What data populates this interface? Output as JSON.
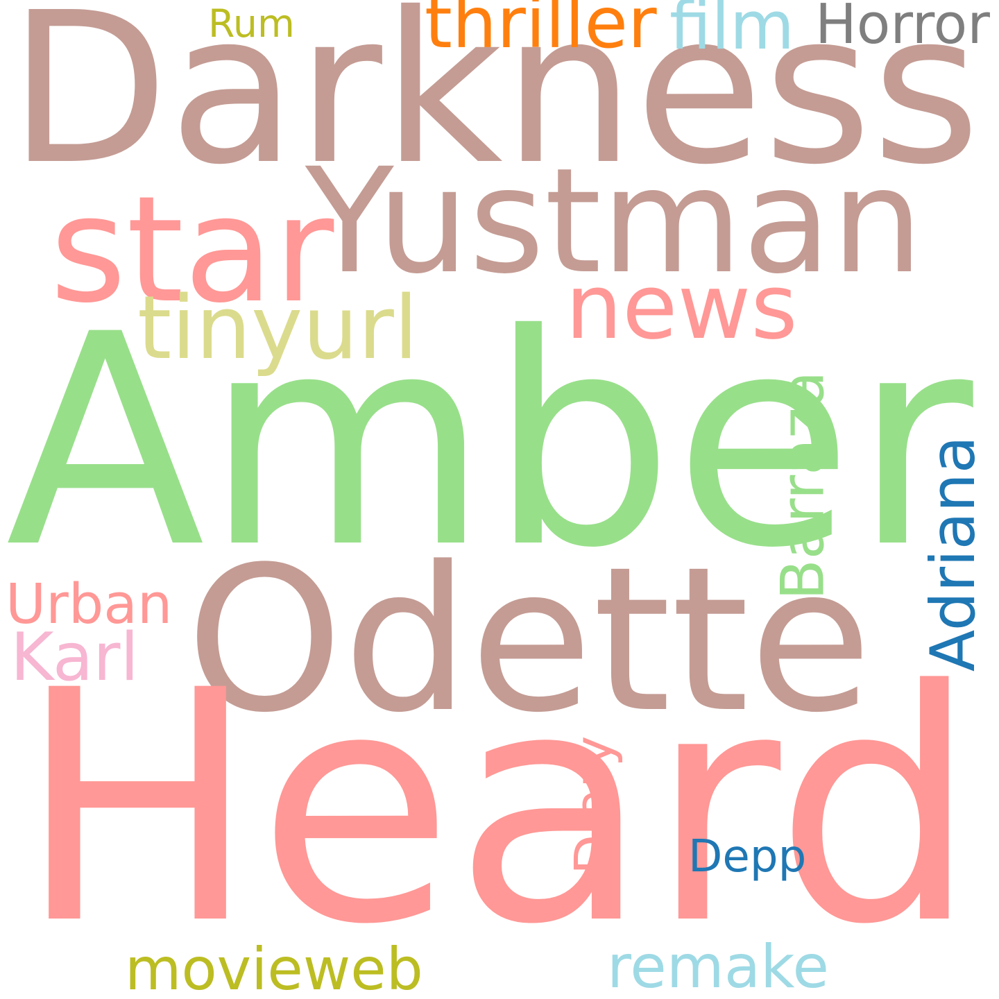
{
  "words": [
    {
      "text": "Darkness",
      "color": "#c49c94"
    },
    {
      "text": "Yustman",
      "color": "#c49c94"
    },
    {
      "text": "star",
      "color": "#ff9896"
    },
    {
      "text": "news",
      "color": "#ff9896"
    },
    {
      "text": "tinyurl",
      "color": "#dbdb8d"
    },
    {
      "text": "Amber",
      "color": "#98df8a"
    },
    {
      "text": "Barraza",
      "color": "#98df8a"
    },
    {
      "text": "Adriana",
      "color": "#1f77b4"
    },
    {
      "text": "Odette",
      "color": "#c49c94"
    },
    {
      "text": "Urban",
      "color": "#ff9896"
    },
    {
      "text": "Karl",
      "color": "#f7b6d2"
    },
    {
      "text": "Heard",
      "color": "#ff9896"
    },
    {
      "text": "Diary",
      "color": "#ff9896"
    },
    {
      "text": "Depp",
      "color": "#1f77b4"
    },
    {
      "text": "movieweb",
      "color": "#bcbd22"
    },
    {
      "text": "remake",
      "color": "#9edae5"
    },
    {
      "text": "Rum",
      "color": "#bcbd22"
    },
    {
      "text": "thriller",
      "color": "#ff7f0e"
    },
    {
      "text": "film",
      "color": "#9edae5"
    },
    {
      "text": "Horror",
      "color": "#7f7f7f"
    }
  ]
}
